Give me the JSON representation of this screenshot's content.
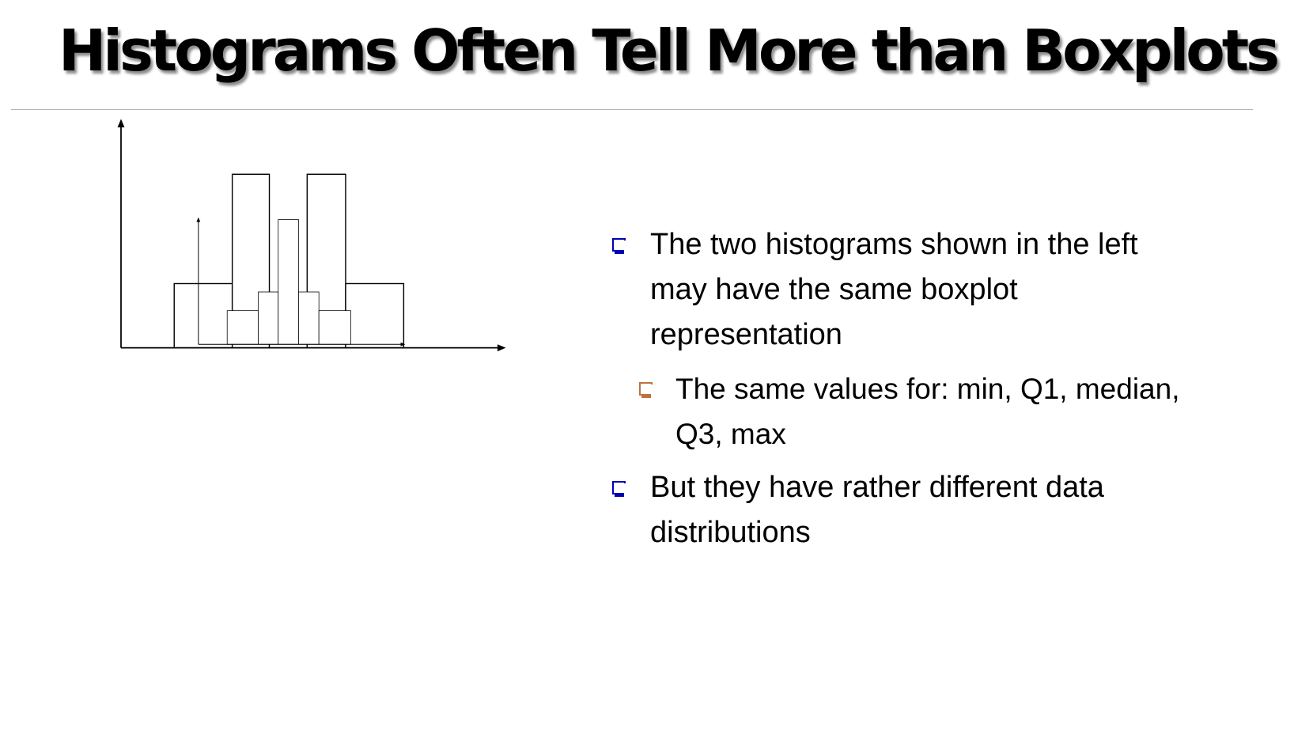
{
  "slide": {
    "title": "Histograms Often Tell More than Boxplots"
  },
  "bullets": [
    {
      "level": 1,
      "text": "The two histograms shown in the left may have the same boxplot representation",
      "color": "#0000b4",
      "icon": "square-bullet-icon"
    },
    {
      "level": 2,
      "text": "The same values for: min, Q1, median, Q3, max",
      "color": "#c0703f",
      "icon": "square-bullet-icon"
    },
    {
      "level": 1,
      "text": "But they have rather different data distributions",
      "color": "#0000b4",
      "icon": "square-bullet-icon"
    }
  ],
  "chart_data": [
    {
      "type": "bar",
      "values": [
        37,
        100,
        25,
        100,
        37
      ]
    },
    {
      "type": "bar",
      "values": [
        27,
        42,
        100,
        42,
        27
      ]
    }
  ]
}
